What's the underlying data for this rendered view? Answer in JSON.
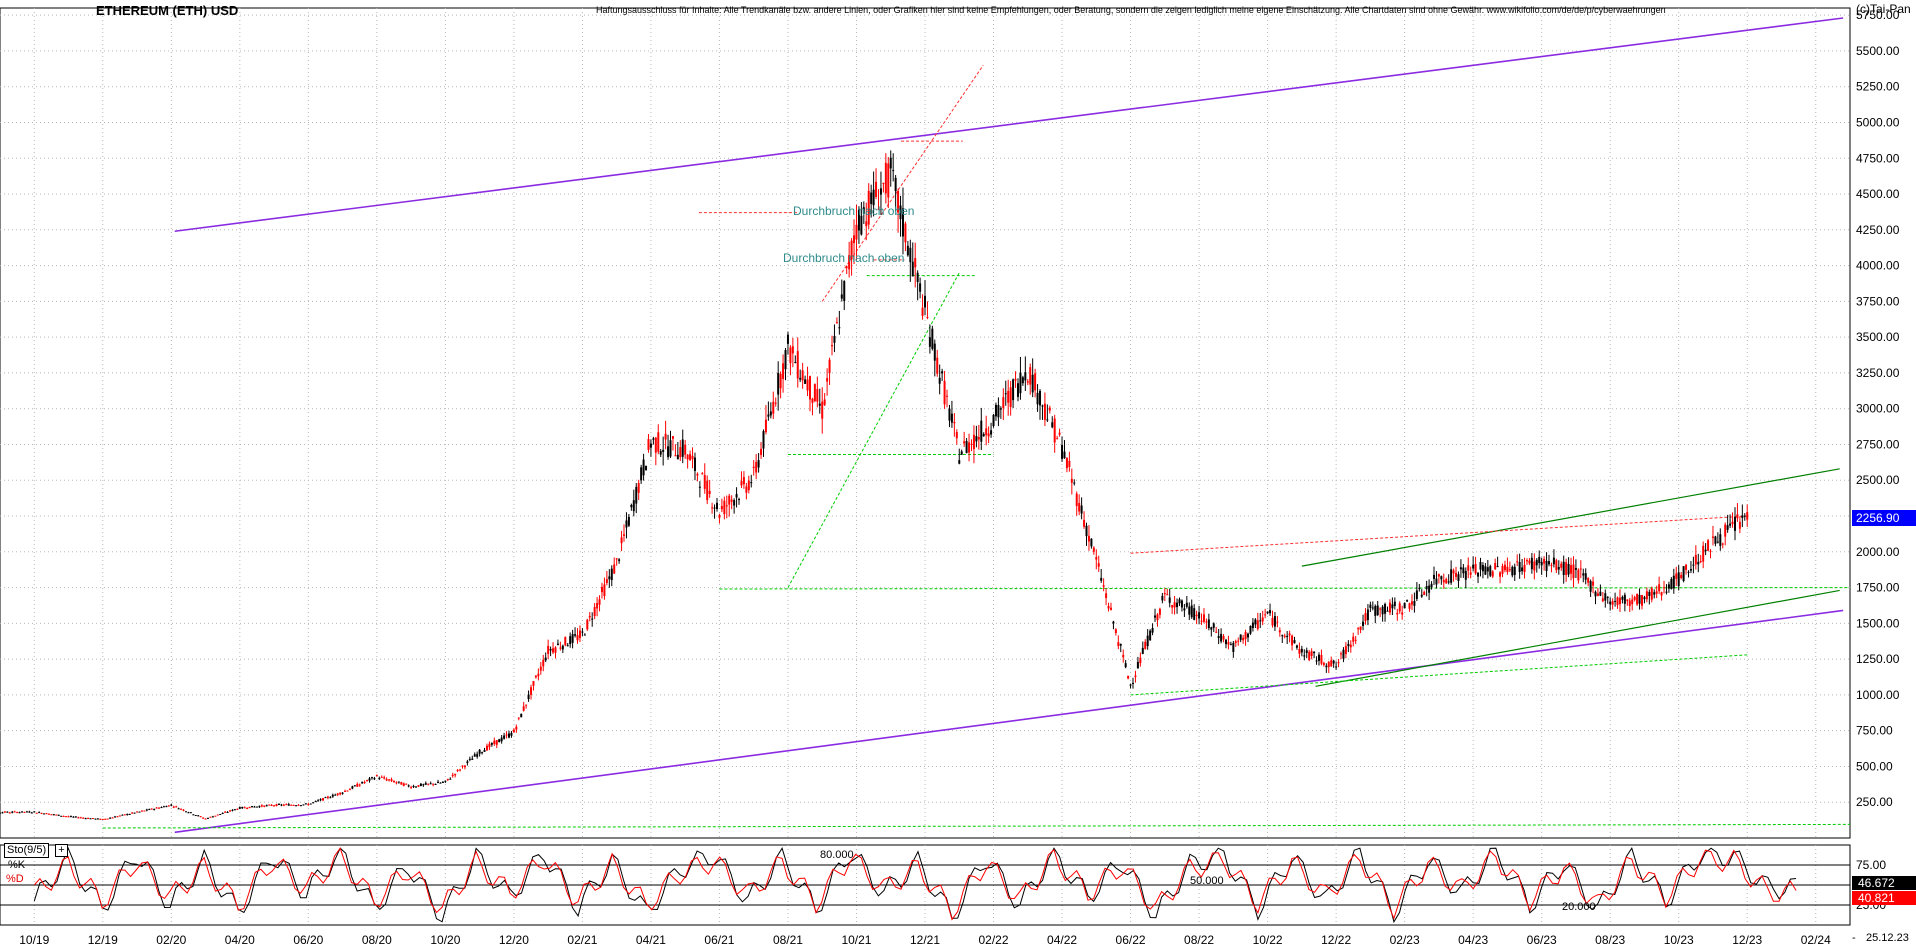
{
  "header": {
    "title": "ETHEREUM (ETH) USD",
    "disclaimer": "Haftungsausschluss für Inhalte: Alle Trendkanäle bzw. andere Linien, oder Grafiken hier sind keine Empfehlungen, oder Beratung, sondern die zeigen lediglich meine eigene Einschätzung. Alle Chartdaten sind ohne Gewähr. www.wikifolio.com/de/de/p/cyberwaehrungen",
    "brand": "(c)Tai-Pan"
  },
  "indicator": {
    "label": "Sto(9/5)",
    "plus": "+",
    "k_label": "%K",
    "d_label": "%D"
  },
  "corner_date": "25.12.23",
  "corner_dash": "-",
  "colors": {
    "up_candle": "#000000",
    "down_candle": "#ff0000",
    "channel_purple": "#8a2be2",
    "trend_green": "#008000",
    "dashed_green": "#00cc00",
    "dashed_red": "#ff3030",
    "annotation_teal": "#2e8b8b",
    "price_marker_bg": "#0000ff",
    "k_line": "#000000",
    "d_line": "#ff0000"
  },
  "chart_data": [
    {
      "type": "candlestick",
      "title": "ETHEREUM (ETH) USD",
      "x_range": [
        "2019-09",
        "2024-03"
      ],
      "ylim": [
        0,
        5800
      ],
      "y_ticks": [
        "250.00",
        "500.00",
        "750.00",
        "1000.00",
        "1250.00",
        "1500.00",
        "1750.00",
        "2000.00",
        "2250.00",
        "2500.00",
        "2750.00",
        "3000.00",
        "3250.00",
        "3500.00",
        "3750.00",
        "4000.00",
        "4250.00",
        "4500.00",
        "4750.00",
        "5000.00",
        "5250.00",
        "5500.00",
        "5750.00"
      ],
      "x_ticks": [
        "10/19",
        "12/19",
        "02/20",
        "04/20",
        "06/20",
        "08/20",
        "10/20",
        "12/20",
        "02/21",
        "04/21",
        "06/21",
        "08/21",
        "10/21",
        "12/21",
        "02/22",
        "04/22",
        "06/22",
        "08/22",
        "10/22",
        "12/22",
        "02/23",
        "04/23",
        "06/23",
        "08/23",
        "10/23",
        "12/23",
        "02/24"
      ],
      "grid": true,
      "last_price": "2256.90",
      "series": [
        {
          "x": [
            "2019-09",
            "2019-10",
            "2019-11",
            "2019-12",
            "2020-01",
            "2020-02",
            "2020-03",
            "2020-04",
            "2020-05",
            "2020-06",
            "2020-07",
            "2020-08",
            "2020-09",
            "2020-10",
            "2020-11",
            "2020-12",
            "2021-01",
            "2021-02",
            "2021-03",
            "2021-04",
            "2021-05",
            "2021-06",
            "2021-07",
            "2021-08",
            "2021-09",
            "2021-10",
            "2021-11",
            "2021-12",
            "2022-01",
            "2022-02",
            "2022-03",
            "2022-04",
            "2022-05",
            "2022-06",
            "2022-07",
            "2022-08",
            "2022-09",
            "2022-10",
            "2022-11",
            "2022-12",
            "2023-01",
            "2023-02",
            "2023-03",
            "2023-04",
            "2023-05",
            "2023-06",
            "2023-07",
            "2023-08",
            "2023-09",
            "2023-10",
            "2023-11",
            "2023-12"
          ],
          "values": [
            180,
            182,
            150,
            130,
            180,
            230,
            135,
            210,
            230,
            235,
            320,
            430,
            360,
            390,
            600,
            740,
            1310,
            1420,
            1920,
            2770,
            2710,
            2280,
            2520,
            3430,
            2990,
            4290,
            4630,
            3680,
            2690,
            2920,
            3280,
            2730,
            1940,
            1070,
            1690,
            1550,
            1330,
            1570,
            1300,
            1200,
            1590,
            1610,
            1820,
            1870,
            1880,
            1930,
            1860,
            1650,
            1670,
            1810,
            2060,
            2256.9
          ]
        }
      ]
    },
    {
      "type": "line",
      "title": "Sto(9/5)",
      "ylim": [
        0,
        100
      ],
      "y_ticks": [
        "75.00",
        "50.00",
        "25.00"
      ],
      "reference_lines": [
        "80.000",
        "50.000",
        "20.000"
      ],
      "last_k": "46.672",
      "last_d": "40.821",
      "series": [
        {
          "name": "%K",
          "values": [
            30,
            85,
            20,
            90,
            25,
            80,
            15,
            88,
            40,
            92,
            20,
            75,
            10,
            85,
            35,
            90,
            22,
            80,
            15,
            70,
            88,
            30,
            85,
            20,
            92,
            40,
            78,
            10,
            85,
            25,
            90,
            35,
            80,
            12,
            75,
            88,
            20,
            85,
            30,
            90,
            15,
            82,
            40,
            92,
            25,
            78,
            18,
            86,
            30,
            88,
            85,
            46.672
          ]
        },
        {
          "name": "%D",
          "values": [
            40,
            75,
            30,
            80,
            35,
            72,
            25,
            80,
            45,
            85,
            30,
            70,
            20,
            78,
            40,
            84,
            30,
            75,
            25,
            65,
            80,
            38,
            78,
            28,
            85,
            45,
            72,
            18,
            78,
            32,
            84,
            40,
            74,
            20,
            70,
            82,
            28,
            78,
            36,
            84,
            22,
            76,
            44,
            86,
            32,
            72,
            24,
            80,
            36,
            82,
            80,
            40.821
          ]
        }
      ]
    }
  ],
  "annotations": {
    "breakout_1": "Durchbruch nach oben",
    "breakout_2": "Durchbruch nach oben",
    "stoch_80": "80.000",
    "stoch_50": "50.000",
    "stoch_20": "20.000"
  }
}
